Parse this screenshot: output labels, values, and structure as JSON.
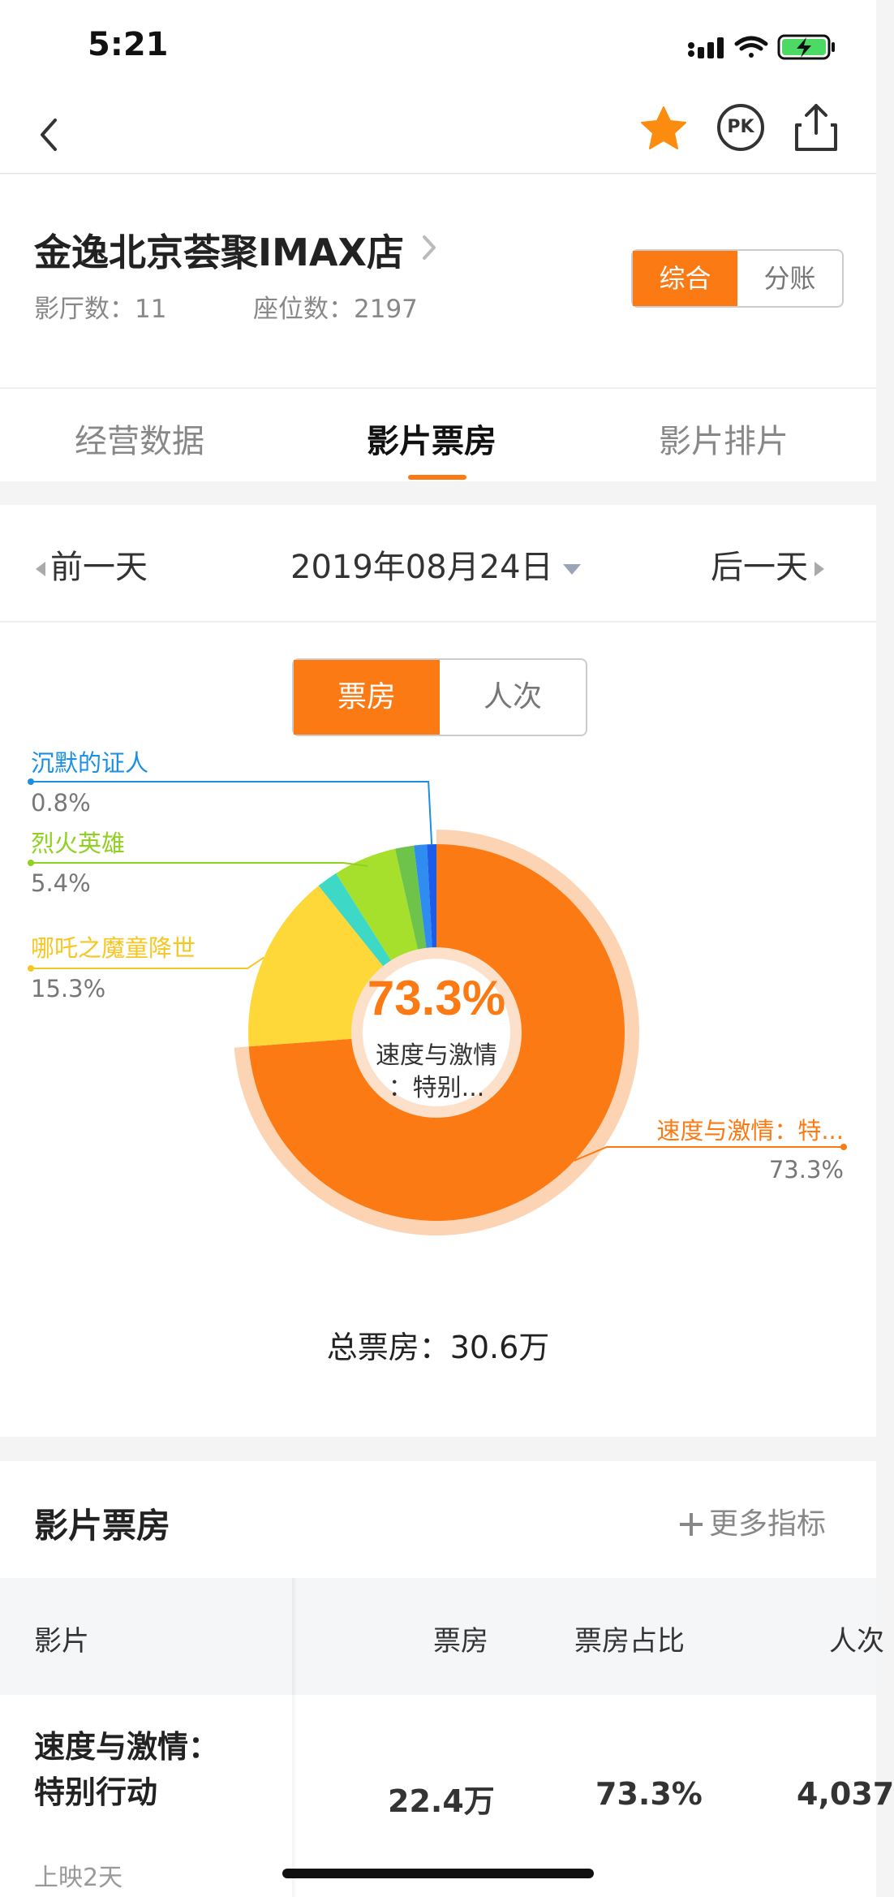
{
  "status_bar": {
    "time": "5:21"
  },
  "nav": {
    "pk_label": "PK"
  },
  "cinema": {
    "name": "金逸北京荟聚IMAX店",
    "halls": "影厅数：11",
    "seats": "座位数：2197",
    "view_options": [
      "综合",
      "分账"
    ],
    "active_view": "综合"
  },
  "tabs": [
    {
      "label": "经营数据",
      "active": false
    },
    {
      "label": "影片票房",
      "active": true
    },
    {
      "label": "影片排片",
      "active": false
    }
  ],
  "date_bar": {
    "prev": "前一天",
    "current": "2019年08月24日",
    "next": "后一天"
  },
  "chart_toggle": [
    "票房",
    "人次"
  ],
  "chart_data": {
    "type": "pie",
    "center_value": "73.3%",
    "center_label": "速度与激情：特别...",
    "slices": [
      {
        "name": "速度与激情：特...",
        "display": "73.3%",
        "value": 73.3,
        "color": "#fc7a13"
      },
      {
        "name": "哪吒之魔童降世",
        "display": "15.3%",
        "value": 15.3,
        "color": "#fdd838"
      },
      {
        "name": "",
        "display": "",
        "value": 1.8,
        "color": "#3dd8c6"
      },
      {
        "name": "烈火英雄",
        "display": "5.4%",
        "value": 5.4,
        "color": "#a6e02c"
      },
      {
        "name": "",
        "display": "",
        "value": 1.6,
        "color": "#6ec34a"
      },
      {
        "name": "",
        "display": "",
        "value": 1.1,
        "color": "#2f8cf0"
      },
      {
        "name": "沉默的证人",
        "display": "0.8%",
        "value": 0.8,
        "color": "#1d5be8"
      }
    ],
    "legend_colors": {
      "速度与激情：特...": "#fc7a13",
      "哪吒之魔童降世": "#f6c623",
      "烈火英雄": "#8fd11f",
      "沉默的证人": "#1a8fe3"
    }
  },
  "total_box_office": "总票房：30.6万",
  "table": {
    "title": "影片票房",
    "more_metrics": "更多指标",
    "headers": [
      "影片",
      "票房",
      "票房占比",
      "人次"
    ],
    "rows": [
      {
        "film": "速度与激情：特别行动",
        "days": "上映2天",
        "box_office": "22.4万",
        "share": "73.3%",
        "admissions": "4,037"
      }
    ]
  }
}
